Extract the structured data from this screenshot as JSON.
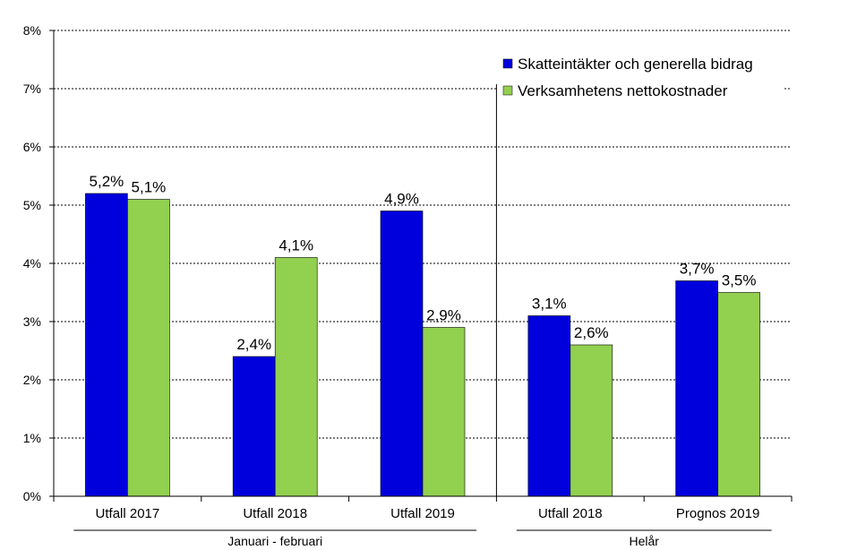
{
  "chart_data": {
    "type": "bar",
    "title": "",
    "xlabel": "",
    "ylabel": "",
    "ylim": [
      0,
      8
    ],
    "yticks": [
      "0%",
      "1%",
      "2%",
      "3%",
      "4%",
      "5%",
      "6%",
      "7%",
      "8%"
    ],
    "grid": true,
    "legend_position": "top-right",
    "categories": [
      "Utfall 2017",
      "Utfall 2018",
      "Utfall 2019",
      "Utfall 2018",
      "Prognos 2019"
    ],
    "groups": [
      {
        "label": "Januari - februari",
        "categories": [
          0,
          1,
          2
        ]
      },
      {
        "label": "Helår",
        "categories": [
          3,
          4
        ]
      }
    ],
    "series": [
      {
        "name": "Skatteintäkter och generella bidrag",
        "color": "#0000dd",
        "values": [
          5.2,
          2.4,
          4.9,
          3.1,
          3.7
        ],
        "labels": [
          "5,2%",
          "2,4%",
          "4,9%",
          "3,1%",
          "3,7%"
        ]
      },
      {
        "name": "Verksamhetens nettokostnader",
        "color": "#92d050",
        "values": [
          5.1,
          4.1,
          2.9,
          2.6,
          3.5
        ],
        "labels": [
          "5,1%",
          "4,1%",
          "2,9%",
          "2,6%",
          "3,5%"
        ]
      }
    ]
  }
}
